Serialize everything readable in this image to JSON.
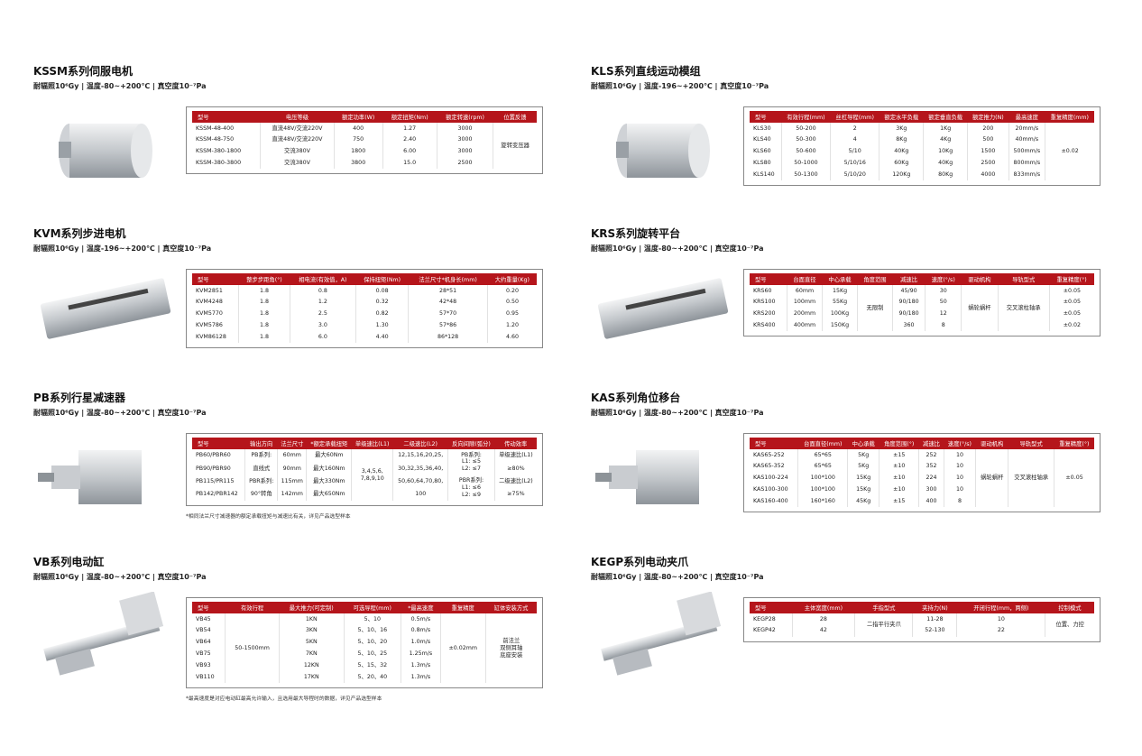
{
  "sections": [
    {
      "title": "KSSM系列伺服电机",
      "subtitle": "耐辐照10⁶Gy | 温度-80~+200℃ | 真空度10⁻⁷Pa",
      "table": {
        "header": [
          "型号",
          "电压等级",
          "额定功率(W)",
          "额定扭矩(Nm)",
          "额定转速(rpm)",
          "位置反馈"
        ],
        "rows": [
          [
            "KSSM-48-400",
            "直流48V/交流220V",
            "400",
            "1.27",
            "3000",
            "旋转变压器"
          ],
          [
            "KSSM-48-750",
            "直流48V/交流220V",
            "750",
            "2.40",
            "3000",
            null
          ],
          [
            "KSSM-380-1800",
            "交流380V",
            "1800",
            "6.00",
            "3000",
            null
          ],
          [
            "KSSM-380-3800",
            "交流380V",
            "3800",
            "15.0",
            "2500",
            null
          ]
        ]
      }
    },
    {
      "title": "KVM系列步进电机",
      "subtitle": "耐辐照10⁶Gy | 温度-196~+200℃ | 真空度10⁻⁷Pa",
      "table": {
        "header": [
          "型号",
          "整步步距角(°)",
          "相电流(有效值，A)",
          "保持扭矩(Nm)",
          "法兰尺寸*机身长(mm)",
          "大约重量(Kg)"
        ],
        "rows": [
          [
            "KVM2851",
            "1.8",
            "0.8",
            "0.08",
            "28*51",
            "0.20"
          ],
          [
            "KVM4248",
            "1.8",
            "1.2",
            "0.32",
            "42*48",
            "0.50"
          ],
          [
            "KVM5770",
            "1.8",
            "2.5",
            "0.82",
            "57*70",
            "0.95"
          ],
          [
            "KVM5786",
            "1.8",
            "3.0",
            "1.30",
            "57*86",
            "1.20"
          ],
          [
            "KVM86128",
            "1.8",
            "6.0",
            "4.40",
            "86*128",
            "4.60"
          ]
        ]
      }
    },
    {
      "title": "PB系列行星减速器",
      "subtitle": "耐辐照10⁶Gy | 温度-80~+200℃ | 真空度10⁻⁷Pa",
      "table": {
        "header": [
          "型号",
          "输出方向",
          "法兰尺寸",
          "*额定承载扭矩",
          "单级速比(L1)",
          "二级速比(L2)",
          "反向间隙(弧分)",
          "传动效率"
        ],
        "rows": [
          [
            "PB60/PBR60",
            "PB系列:",
            "60mm",
            "最大60Nm",
            "3,4,5,6,\n7,8,9,10",
            "12,15,16,20,25,",
            "PB系列:\nL1: ≤5\nL2: ≤7",
            "单级速比(L1)"
          ],
          [
            "PB90/PBR90",
            "直线式",
            "90mm",
            "最大160Nm",
            null,
            "30,32,35,36,40,",
            null,
            "≥80%"
          ],
          [
            "PB115/PR115",
            "PBR系列:",
            "115mm",
            "最大330Nm",
            null,
            "50,60,64,70,80,",
            "PBR系列:\nL1: ≤6\nL2: ≤9",
            "二级速比(L2)"
          ],
          [
            "PB142/PBR142",
            "90°转角",
            "142mm",
            "最大650Nm",
            null,
            "100",
            null,
            "≥75%"
          ]
        ]
      },
      "note": "*相同法兰尺寸减速器的额定承载扭矩与减速比有关，详见产品选型样本"
    },
    {
      "title": "VB系列电动缸",
      "subtitle": "耐辐照10⁶Gy | 温度-80~+200℃ | 真空度10⁻⁷Pa",
      "table": {
        "header": [
          "型号",
          "有效行程",
          "最大推力(可定制)",
          "可选导程(mm)",
          "*最高速度",
          "重复精度",
          "缸体安装方式"
        ],
        "rows": [
          [
            "VB45",
            "50-1500mm",
            "1KN",
            "5、10",
            "0.5m/s",
            "±0.02mm",
            "前法兰\n双侧耳轴\n底座安装"
          ],
          [
            "VB54",
            null,
            "3KN",
            "5、10、16",
            "0.8m/s",
            null,
            null
          ],
          [
            "VB64",
            null,
            "5KN",
            "5、10、20",
            "1.0m/s",
            null,
            null
          ],
          [
            "VB75",
            null,
            "7KN",
            "5、10、25",
            "1.25m/s",
            null,
            null
          ],
          [
            "VB93",
            null,
            "12KN",
            "5、15、32",
            "1.3m/s",
            null,
            null
          ],
          [
            "VB110",
            null,
            "17KN",
            "5、20、40",
            "1.3m/s",
            null,
            null
          ]
        ]
      },
      "note": "*最高速度是对应电动缸最高允许输入，且选用最大导程时的数据，详见产品选型样本"
    },
    {
      "title": "KLS系列直线运动模组",
      "subtitle": "耐辐照10⁶Gy | 温度-196~+200℃ | 真空度10⁻⁷Pa",
      "table": {
        "header": [
          "型号",
          "有效行程(mm)",
          "丝杠导程(mm)",
          "额定水平负载",
          "额定垂直负载",
          "额定推力(N)",
          "最高速度",
          "重复精度(mm)"
        ],
        "rows": [
          [
            "KLS30",
            "50-200",
            "2",
            "3Kg",
            "1Kg",
            "200",
            "20mm/s",
            "±0.02"
          ],
          [
            "KLS40",
            "50-300",
            "4",
            "8Kg",
            "4Kg",
            "500",
            "40mm/s",
            null
          ],
          [
            "KLS60",
            "50-600",
            "5/10",
            "40Kg",
            "10Kg",
            "1500",
            "500mm/s",
            null
          ],
          [
            "KLS80",
            "50-1000",
            "5/10/16",
            "60Kg",
            "40Kg",
            "2500",
            "800mm/s",
            null
          ],
          [
            "KLS140",
            "50-1300",
            "5/10/20",
            "120Kg",
            "80Kg",
            "4000",
            "833mm/s",
            null
          ]
        ]
      }
    },
    {
      "title": "KRS系列旋转平台",
      "subtitle": "耐辐照10⁶Gy | 温度-80~+200℃ | 真空度10⁻⁷Pa",
      "table": {
        "header": [
          "型号",
          "台面直径",
          "中心承载",
          "角度范围",
          "减速比",
          "速度(°/s)",
          "驱动机构",
          "导轨型式",
          "重复精度(°)"
        ],
        "rows": [
          [
            "KRS60",
            "60mm",
            "15Kg",
            "无限制",
            "45/90",
            "30",
            "蜗轮蜗杆",
            "交叉滚柱轴承",
            "±0.05"
          ],
          [
            "KRS100",
            "100mm",
            "55Kg",
            null,
            "90/180",
            "50",
            null,
            null,
            "±0.05"
          ],
          [
            "KRS200",
            "200mm",
            "100Kg",
            null,
            "90/180",
            "12",
            null,
            null,
            "±0.05"
          ],
          [
            "KRS400",
            "400mm",
            "150Kg",
            null,
            "360",
            "8",
            null,
            null,
            "±0.02"
          ]
        ]
      }
    },
    {
      "title": "KAS系列角位移台",
      "subtitle": "耐辐照10⁶Gy | 温度-80~+200℃ | 真空度10⁻⁷Pa",
      "table": {
        "header": [
          "型号",
          "台面直径(mm)",
          "中心承载",
          "角度范围(°)",
          "减速比",
          "速度(°/s)",
          "驱动机构",
          "导轨型式",
          "重复精度(°)"
        ],
        "rows": [
          [
            "KAS65-252",
            "65*65",
            "5Kg",
            "±15",
            "252",
            "10",
            "蜗轮蜗杆",
            "交叉滚柱轴承",
            "±0.05"
          ],
          [
            "KAS65-352",
            "65*65",
            "5Kg",
            "±10",
            "352",
            "10",
            null,
            null,
            null
          ],
          [
            "KAS100-224",
            "100*100",
            "15Kg",
            "±10",
            "224",
            "10",
            null,
            null,
            null
          ],
          [
            "KAS100-300",
            "100*100",
            "15Kg",
            "±10",
            "300",
            "10",
            null,
            null,
            null
          ],
          [
            "KAS160-400",
            "160*160",
            "45Kg",
            "±15",
            "400",
            "8",
            null,
            null,
            null
          ]
        ]
      }
    },
    {
      "title": "KEGP系列电动夹爪",
      "subtitle": "耐辐照10⁶Gy | 温度-80~+200℃ | 真空度10⁻⁷Pa",
      "table": {
        "header": [
          "型号",
          "主体宽度(mm)",
          "手指型式",
          "夹持力(N)",
          "开闭行程(mm，两侧)",
          "控制模式"
        ],
        "rows": [
          [
            "KEGP28",
            "28",
            "二指平行夹爪",
            "11-28",
            "10",
            "位置、力控"
          ],
          [
            "KEGP42",
            "42",
            null,
            "52-130",
            "22",
            null
          ]
        ]
      }
    }
  ]
}
